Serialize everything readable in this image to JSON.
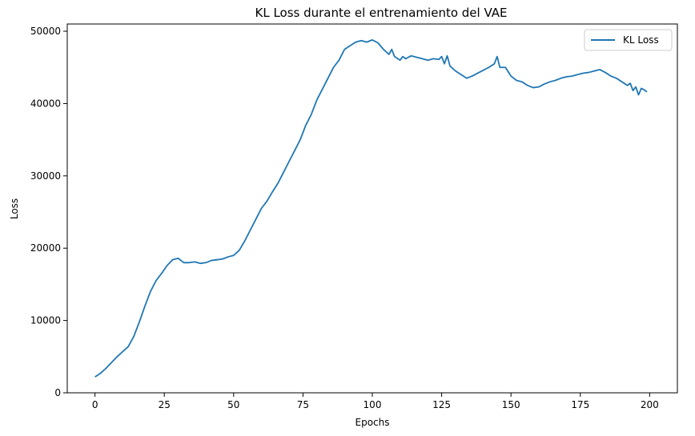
{
  "chart_data": {
    "type": "line",
    "title": "KL Loss durante el entrenamiento del VAE",
    "xlabel": "Epochs",
    "ylabel": "Loss",
    "xlim": [
      -10,
      210
    ],
    "ylim": [
      0,
      51000
    ],
    "xticks": [
      0,
      25,
      50,
      75,
      100,
      125,
      150,
      175,
      200
    ],
    "yticks": [
      0,
      10000,
      20000,
      30000,
      40000,
      50000
    ],
    "grid": false,
    "legend": {
      "position": "top-right",
      "entries": [
        "KL Loss"
      ]
    },
    "series": [
      {
        "name": "KL Loss",
        "color": "#1f77b4",
        "x": [
          0,
          2,
          4,
          6,
          8,
          10,
          12,
          14,
          16,
          18,
          20,
          22,
          24,
          26,
          28,
          30,
          31,
          32,
          34,
          36,
          38,
          40,
          42,
          44,
          46,
          48,
          50,
          52,
          54,
          56,
          58,
          60,
          62,
          64,
          66,
          68,
          70,
          72,
          74,
          76,
          78,
          80,
          82,
          84,
          86,
          88,
          90,
          92,
          94,
          96,
          98,
          100,
          102,
          104,
          106,
          107,
          108,
          110,
          111,
          112,
          114,
          116,
          118,
          120,
          122,
          124,
          125,
          126,
          127,
          128,
          130,
          132,
          134,
          136,
          138,
          140,
          142,
          144,
          145,
          146,
          148,
          150,
          152,
          154,
          156,
          158,
          160,
          162,
          164,
          166,
          168,
          170,
          172,
          174,
          176,
          178,
          180,
          182,
          184,
          186,
          188,
          190,
          192,
          193,
          194,
          195,
          196,
          197,
          198,
          199
        ],
        "y": [
          2200,
          2700,
          3400,
          4200,
          5000,
          5700,
          6400,
          7800,
          9800,
          12000,
          14000,
          15500,
          16500,
          17600,
          18400,
          18600,
          18300,
          18000,
          18000,
          18100,
          17900,
          18000,
          18300,
          18400,
          18500,
          18800,
          19000,
          19700,
          21000,
          22500,
          24000,
          25500,
          26500,
          27800,
          29000,
          30500,
          32000,
          33500,
          35000,
          37000,
          38500,
          40500,
          42000,
          43500,
          45000,
          46000,
          47500,
          48000,
          48500,
          48700,
          48500,
          48800,
          48400,
          47500,
          46800,
          47500,
          46500,
          46000,
          46500,
          46200,
          46600,
          46400,
          46200,
          46000,
          46200,
          46100,
          46500,
          45500,
          46600,
          45200,
          44500,
          44000,
          43500,
          43800,
          44200,
          44600,
          45000,
          45500,
          46500,
          45000,
          45000,
          43800,
          43200,
          43000,
          42500,
          42200,
          42300,
          42700,
          43000,
          43200,
          43500,
          43700,
          43800,
          44000,
          44200,
          44300,
          44500,
          44700,
          44300,
          43800,
          43500,
          43000,
          42500,
          42800,
          41800,
          42300,
          41200,
          42100,
          41900,
          41600
        ]
      }
    ]
  }
}
